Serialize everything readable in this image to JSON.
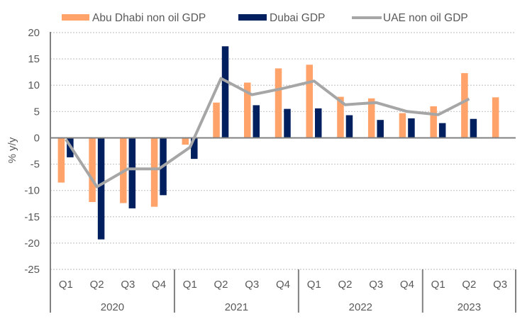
{
  "chart_data": {
    "type": "bar",
    "title": "",
    "xlabel": "",
    "ylabel": "% y/y",
    "ylim": [
      -25,
      20
    ],
    "yticks": [
      20,
      15,
      10,
      5,
      0,
      -5,
      -10,
      -15,
      -20,
      -25
    ],
    "ytick_labels": [
      "20",
      "15",
      "10",
      "5",
      "0",
      "-5",
      "-10",
      "-15",
      "-20",
      "-25"
    ],
    "grid": true,
    "legend_position": "top",
    "categories": [
      "Q1",
      "Q2",
      "Q3",
      "Q4",
      "Q1",
      "Q2",
      "Q3",
      "Q4",
      "Q1",
      "Q2",
      "Q3",
      "Q4",
      "Q1",
      "Q2",
      "Q3"
    ],
    "groups": [
      {
        "label": "2020",
        "count": 4
      },
      {
        "label": "2021",
        "count": 4
      },
      {
        "label": "2022",
        "count": 4
      },
      {
        "label": "2023",
        "count": 3
      }
    ],
    "series": [
      {
        "name": "Abu Dhabi non oil GDP",
        "kind": "bar",
        "color": "#FFA36B",
        "values": [
          -8.5,
          -12.2,
          -12.4,
          -13.1,
          -1.3,
          6.7,
          10.5,
          13.2,
          13.9,
          7.8,
          7.5,
          4.7,
          6.0,
          12.3,
          7.7
        ]
      },
      {
        "name": "Dubai GDP",
        "kind": "bar",
        "color": "#001F5F",
        "values": [
          -3.7,
          -19.3,
          -13.4,
          -10.9,
          -4.0,
          17.4,
          6.2,
          5.5,
          5.6,
          4.3,
          3.4,
          3.7,
          2.8,
          3.6,
          null
        ]
      },
      {
        "name": "UAE non oil GDP",
        "kind": "line",
        "color": "#A6A6A6",
        "values": [
          -0.3,
          -9.3,
          -5.9,
          -5.9,
          -1.8,
          11.3,
          8.2,
          9.4,
          10.8,
          6.3,
          6.7,
          5.0,
          4.4,
          7.4,
          null
        ]
      }
    ]
  }
}
